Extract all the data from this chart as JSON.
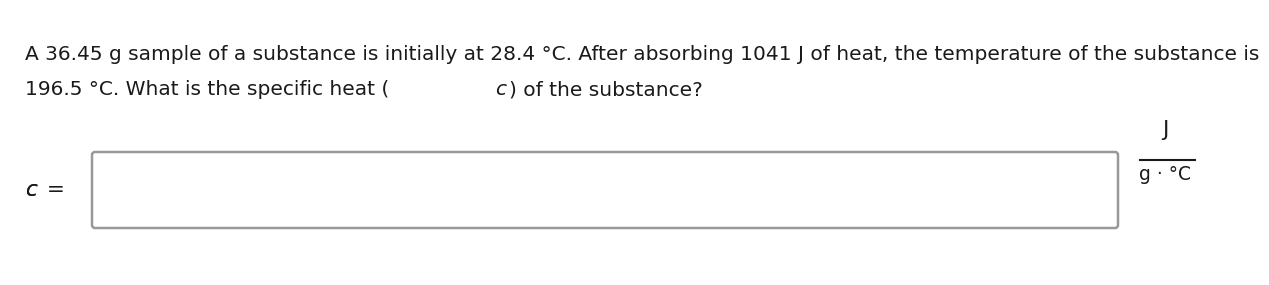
{
  "line1": "A 36.45 g sample of a substance is initially at 28.4 °C. After absorbing 1041 J of heat, the temperature of the substance is",
  "line2_part1": "196.5 °C. What is the specific heat (",
  "line2_italic": "c",
  "line2_part2": ") of the substance?",
  "label_italic": "c",
  "label_eq": " =",
  "unit_numerator": "J",
  "unit_denominator": "g · °C",
  "background_color": "#ffffff",
  "text_color": "#1a1a1a",
  "box_edge_color": "#999999",
  "font_size_main": 14.5,
  "font_size_unit": 13.5
}
